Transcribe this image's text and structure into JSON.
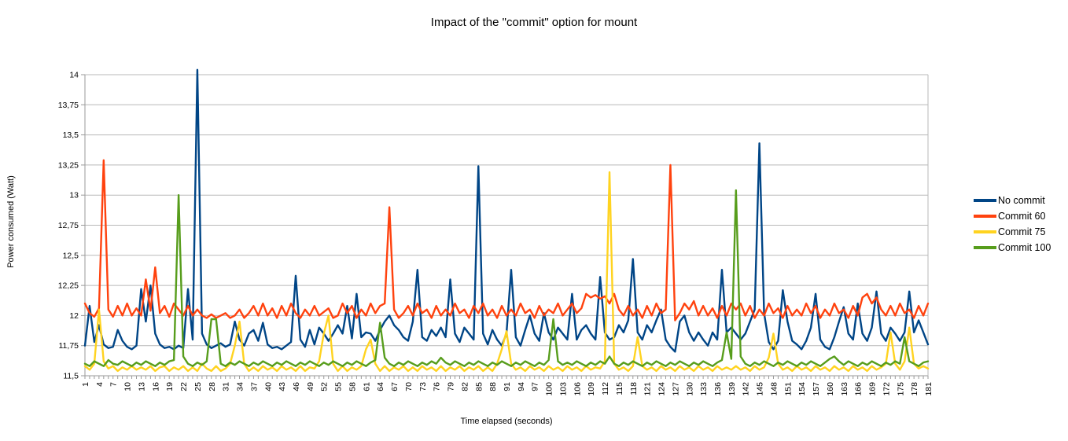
{
  "chart_data": {
    "type": "line",
    "title": "Impact of the \"commit\" option for mount",
    "xlabel": "Time elapsed (seconds)",
    "ylabel": "Power consumed (Watt)",
    "x_start": 1,
    "x_end": 181,
    "x_tick_step": 3,
    "x_tick_labels": [
      "1",
      "4",
      "7",
      "10",
      "13",
      "16",
      "19",
      "22",
      "25",
      "28",
      "31",
      "34",
      "37",
      "40",
      "43",
      "46",
      "49",
      "52",
      "55",
      "58",
      "61",
      "64",
      "67",
      "70",
      "73",
      "76",
      "79",
      "82",
      "85",
      "88",
      "91",
      "94",
      "97",
      "100",
      "103",
      "106",
      "109",
      "112",
      "115",
      "118",
      "121",
      "124",
      "127",
      "130",
      "133",
      "136",
      "139",
      "142",
      "145",
      "148",
      "151",
      "154",
      "157",
      "160",
      "163",
      "166",
      "169",
      "172",
      "175",
      "178",
      "181"
    ],
    "y_ticks": [
      11.5,
      11.75,
      12,
      12.25,
      12.5,
      12.75,
      13,
      13.25,
      13.5,
      13.75,
      14
    ],
    "y_tick_labels": [
      "11,5",
      "11,75",
      "12",
      "12,25",
      "12,5",
      "12,75",
      "13",
      "13,25",
      "13,5",
      "13,75",
      "14"
    ],
    "ylim": [
      11.5,
      14
    ],
    "grid": true,
    "legend_position": "right",
    "decimal_separator": ",",
    "grid_color": "#b9b9b9",
    "axis_color": "#9a9a9a",
    "text_color": "#000000",
    "background_color": "#ffffff",
    "series": [
      {
        "name": "No commit",
        "color": "#004586",
        "values": [
          11.75,
          12.08,
          11.78,
          11.92,
          11.76,
          11.73,
          11.74,
          11.88,
          11.79,
          11.74,
          11.72,
          11.75,
          12.22,
          11.95,
          12.25,
          11.85,
          11.76,
          11.73,
          11.74,
          11.72,
          11.75,
          11.73,
          12.22,
          11.8,
          14.04,
          11.85,
          11.76,
          11.73,
          11.75,
          11.77,
          11.74,
          11.76,
          11.95,
          11.8,
          11.75,
          11.85,
          11.88,
          11.79,
          11.94,
          11.76,
          11.73,
          11.74,
          11.72,
          11.75,
          11.78,
          12.33,
          11.8,
          11.74,
          11.88,
          11.76,
          11.9,
          11.85,
          11.79,
          11.85,
          11.92,
          11.85,
          12.08,
          11.81,
          12.18,
          11.82,
          11.86,
          11.85,
          11.79,
          11.88,
          11.95,
          12.0,
          11.92,
          11.88,
          11.82,
          11.79,
          11.95,
          12.38,
          11.82,
          11.79,
          11.88,
          11.83,
          11.9,
          11.82,
          12.3,
          11.85,
          11.78,
          11.9,
          11.85,
          11.8,
          13.24,
          11.85,
          11.76,
          11.88,
          11.8,
          11.75,
          11.85,
          12.38,
          11.82,
          11.75,
          11.88,
          12.0,
          11.85,
          11.79,
          12.02,
          11.86,
          11.8,
          11.9,
          11.85,
          11.8,
          12.18,
          11.8,
          11.88,
          11.92,
          11.85,
          11.8,
          12.32,
          11.86,
          11.8,
          11.82,
          11.92,
          11.86,
          11.96,
          12.47,
          11.86,
          11.8,
          11.92,
          11.86,
          11.96,
          12.05,
          11.8,
          11.74,
          11.7,
          11.95,
          12.0,
          11.86,
          11.79,
          11.86,
          11.8,
          11.75,
          11.86,
          11.8,
          12.38,
          11.86,
          11.9,
          11.85,
          11.8,
          11.85,
          11.95,
          12.05,
          13.43,
          12.02,
          11.78,
          11.72,
          11.79,
          12.21,
          11.95,
          11.79,
          11.76,
          11.72,
          11.79,
          11.9,
          12.18,
          11.8,
          11.74,
          11.72,
          11.82,
          11.95,
          12.07,
          11.85,
          11.8,
          12.1,
          11.85,
          11.79,
          11.9,
          12.2,
          11.85,
          11.79,
          11.9,
          11.85,
          11.79,
          11.86,
          12.2,
          11.86,
          11.96,
          11.86,
          11.76
        ]
      },
      {
        "name": "Commit 60",
        "color": "#ff420e",
        "values": [
          12.1,
          12.02,
          11.99,
          12.06,
          13.29,
          12.05,
          11.99,
          12.08,
          12.0,
          12.1,
          12.0,
          12.06,
          12.0,
          12.3,
          12.04,
          12.4,
          12.02,
          12.08,
          11.99,
          12.1,
          12.05,
          12.0,
          12.08,
          12.0,
          12.05,
          12.0,
          11.98,
          12.01,
          11.98,
          12.0,
          12.02,
          11.98,
          12.0,
          12.05,
          11.98,
          12.02,
          12.08,
          12.0,
          12.1,
          12.0,
          12.06,
          11.98,
          12.08,
          12.0,
          12.1,
          12.02,
          11.98,
          12.05,
          12.0,
          12.08,
          12.0,
          12.03,
          12.06,
          11.98,
          12.0,
          12.1,
          12.02,
          12.08,
          11.98,
          12.05,
          12.0,
          12.1,
          12.02,
          12.08,
          12.1,
          12.9,
          12.05,
          11.98,
          12.02,
          12.08,
          12.0,
          12.1,
          12.02,
          12.05,
          11.98,
          12.08,
          12.0,
          12.05,
          12.0,
          12.1,
          12.02,
          12.05,
          11.98,
          12.08,
          12.02,
          12.1,
          12.0,
          12.05,
          11.98,
          12.08,
          12.0,
          12.05,
          12.0,
          12.1,
          12.02,
          12.05,
          11.98,
          12.08,
          12.0,
          12.05,
          12.02,
          12.1,
          12.0,
          12.05,
          12.1,
          12.02,
          12.06,
          12.18,
          12.15,
          12.17,
          12.14,
          12.16,
          12.1,
          12.18,
          12.05,
          12.0,
          12.08,
          12.0,
          12.05,
          11.98,
          12.08,
          12.0,
          12.1,
          12.02,
          12.05,
          13.25,
          11.96,
          12.02,
          12.1,
          12.05,
          12.12,
          12.0,
          12.08,
          12.0,
          12.06,
          11.98,
          12.08,
          12.0,
          12.1,
          12.05,
          12.1,
          12.0,
          12.08,
          11.98,
          12.05,
          12.0,
          12.1,
          12.02,
          12.06,
          11.98,
          12.08,
          12.0,
          12.05,
          12.0,
          12.1,
          12.02,
          12.08,
          11.98,
          12.05,
          12.0,
          12.1,
          12.02,
          12.05,
          11.98,
          12.08,
          12.0,
          12.15,
          12.18,
          12.1,
          12.15,
          12.05,
          12.0,
          12.08,
          12.0,
          12.1,
          12.02,
          12.05,
          11.98,
          12.08,
          12.0,
          12.1
        ]
      },
      {
        "name": "Commit 75",
        "color": "#ffd320",
        "values": [
          11.58,
          11.55,
          11.6,
          12.05,
          11.62,
          11.56,
          11.58,
          11.54,
          11.57,
          11.55,
          11.58,
          11.55,
          11.57,
          11.55,
          11.58,
          11.54,
          11.57,
          11.58,
          11.54,
          11.57,
          11.55,
          11.58,
          11.54,
          11.57,
          11.54,
          11.6,
          11.56,
          11.54,
          11.58,
          11.54,
          11.56,
          11.6,
          11.75,
          11.95,
          11.6,
          11.54,
          11.57,
          11.54,
          11.58,
          11.55,
          11.57,
          11.54,
          11.58,
          11.55,
          11.57,
          11.54,
          11.58,
          11.54,
          11.57,
          11.56,
          11.62,
          11.85,
          12.0,
          11.6,
          11.54,
          11.58,
          11.54,
          11.57,
          11.55,
          11.58,
          11.72,
          11.8,
          11.6,
          11.54,
          11.58,
          11.54,
          11.57,
          11.55,
          11.58,
          11.54,
          11.57,
          11.54,
          11.58,
          11.55,
          11.57,
          11.54,
          11.58,
          11.54,
          11.57,
          11.55,
          11.58,
          11.54,
          11.57,
          11.55,
          11.58,
          11.54,
          11.57,
          11.54,
          11.6,
          11.72,
          11.87,
          11.6,
          11.55,
          11.57,
          11.54,
          11.58,
          11.55,
          11.57,
          11.54,
          11.58,
          11.55,
          11.57,
          11.54,
          11.58,
          11.55,
          11.57,
          11.54,
          11.58,
          11.55,
          11.57,
          11.56,
          11.62,
          13.19,
          11.6,
          11.55,
          11.57,
          11.54,
          11.58,
          11.82,
          11.58,
          11.55,
          11.57,
          11.54,
          11.58,
          11.55,
          11.57,
          11.54,
          11.58,
          11.55,
          11.57,
          11.54,
          11.58,
          11.55,
          11.57,
          11.54,
          11.58,
          11.55,
          11.57,
          11.55,
          11.58,
          11.55,
          11.57,
          11.54,
          11.58,
          11.55,
          11.57,
          11.65,
          11.85,
          11.6,
          11.55,
          11.57,
          11.54,
          11.58,
          11.55,
          11.57,
          11.54,
          11.58,
          11.55,
          11.57,
          11.54,
          11.58,
          11.55,
          11.57,
          11.54,
          11.58,
          11.55,
          11.57,
          11.54,
          11.58,
          11.55,
          11.57,
          11.6,
          11.86,
          11.6,
          11.55,
          11.62,
          11.9,
          11.6,
          11.56,
          11.58,
          11.56
        ]
      },
      {
        "name": "Commit 100",
        "color": "#579d1c",
        "values": [
          11.6,
          11.58,
          11.62,
          11.6,
          11.58,
          11.63,
          11.6,
          11.59,
          11.62,
          11.6,
          11.58,
          11.61,
          11.59,
          11.62,
          11.6,
          11.58,
          11.61,
          11.59,
          11.62,
          11.63,
          13.0,
          11.66,
          11.6,
          11.58,
          11.61,
          11.59,
          11.62,
          11.97,
          11.97,
          11.6,
          11.58,
          11.61,
          11.59,
          11.62,
          11.6,
          11.58,
          11.61,
          11.59,
          11.62,
          11.6,
          11.58,
          11.61,
          11.59,
          11.62,
          11.6,
          11.58,
          11.61,
          11.59,
          11.62,
          11.6,
          11.58,
          11.61,
          11.59,
          11.62,
          11.6,
          11.58,
          11.61,
          11.59,
          11.62,
          11.6,
          11.58,
          11.61,
          11.63,
          11.94,
          11.65,
          11.6,
          11.58,
          11.61,
          11.59,
          11.62,
          11.6,
          11.58,
          11.61,
          11.59,
          11.62,
          11.6,
          11.65,
          11.61,
          11.59,
          11.62,
          11.6,
          11.58,
          11.61,
          11.59,
          11.62,
          11.6,
          11.58,
          11.61,
          11.59,
          11.62,
          11.6,
          11.58,
          11.61,
          11.59,
          11.62,
          11.6,
          11.58,
          11.61,
          11.59,
          11.63,
          11.97,
          11.62,
          11.59,
          11.61,
          11.59,
          11.62,
          11.6,
          11.58,
          11.61,
          11.59,
          11.62,
          11.6,
          11.66,
          11.6,
          11.58,
          11.61,
          11.59,
          11.62,
          11.6,
          11.58,
          11.61,
          11.59,
          11.62,
          11.6,
          11.58,
          11.61,
          11.59,
          11.62,
          11.6,
          11.58,
          11.61,
          11.59,
          11.62,
          11.6,
          11.58,
          11.61,
          11.63,
          11.86,
          11.64,
          13.04,
          11.66,
          11.6,
          11.58,
          11.61,
          11.59,
          11.62,
          11.6,
          11.58,
          11.61,
          11.59,
          11.62,
          11.6,
          11.58,
          11.61,
          11.59,
          11.62,
          11.6,
          11.58,
          11.61,
          11.64,
          11.66,
          11.62,
          11.59,
          11.62,
          11.6,
          11.58,
          11.61,
          11.59,
          11.62,
          11.6,
          11.58,
          11.61,
          11.59,
          11.62,
          11.6,
          11.82,
          11.62,
          11.6,
          11.58,
          11.61,
          11.62
        ]
      }
    ]
  }
}
